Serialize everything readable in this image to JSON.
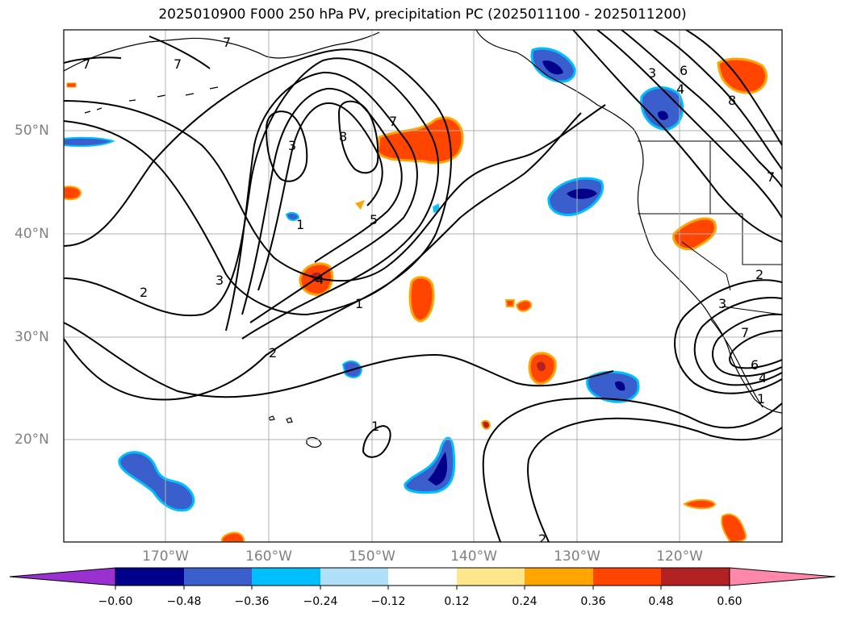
{
  "title": "2025010900 F000 250 hPa PV, precipitation PC (2025011100 - 2025011200)",
  "lat_labels": [
    "50°N",
    "40°N",
    "30°N",
    "20°N"
  ],
  "lon_labels": [
    "170°W",
    "160°W",
    "150°W",
    "140°W",
    "130°W",
    "120°W"
  ],
  "contour_labels": [
    "7",
    "7",
    "7",
    "3",
    "8",
    "7",
    "5",
    "1",
    "4",
    "3",
    "2",
    "2",
    "1",
    "1",
    "2",
    "3",
    "6",
    "4",
    "8",
    "7",
    "2",
    "3",
    "6",
    "7",
    "4",
    "1"
  ],
  "colorbar": {
    "tick_labels": [
      "−0.60",
      "−0.48",
      "−0.36",
      "−0.24",
      "−0.12",
      "0.12",
      "0.24",
      "0.36",
      "0.48",
      "0.60"
    ],
    "colors": [
      "#9b30d0",
      "#00008b",
      "#3a5fcd",
      "#00bfff",
      "#b0e0f8",
      "#ffffff",
      "#ffe68a",
      "#ffa500",
      "#ff4500",
      "#b22222",
      "#ff88aa"
    ]
  },
  "colors": {
    "pos_light": "#ffe68a",
    "pos_orange": "#ffa500",
    "pos_red": "#ff4500",
    "pos_dark": "#b22222",
    "neg_light": "#b0e0f8",
    "neg_cyan": "#00bfff",
    "neg_blue": "#3a5fcd",
    "neg_dark": "#00008b"
  }
}
